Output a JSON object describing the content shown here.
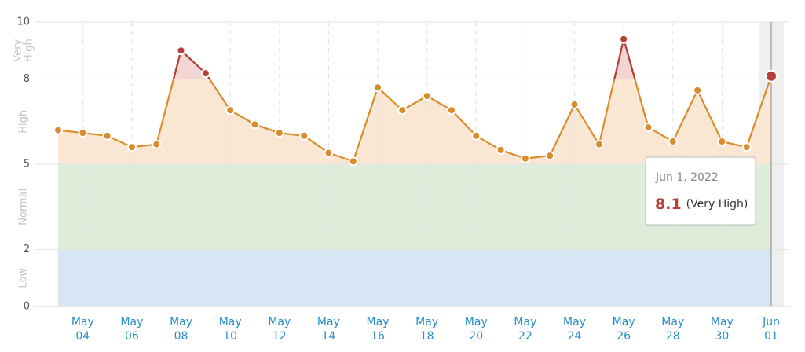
{
  "chart_data": {
    "type": "line",
    "categories": [
      null,
      [
        "May",
        "04"
      ],
      null,
      [
        "May",
        "06"
      ],
      null,
      [
        "May",
        "08"
      ],
      null,
      [
        "May",
        "10"
      ],
      null,
      [
        "May",
        "12"
      ],
      null,
      [
        "May",
        "14"
      ],
      null,
      [
        "May",
        "16"
      ],
      null,
      [
        "May",
        "18"
      ],
      null,
      [
        "May",
        "20"
      ],
      null,
      [
        "May",
        "22"
      ],
      null,
      [
        "May",
        "24"
      ],
      null,
      [
        "May",
        "26"
      ],
      null,
      [
        "May",
        "28"
      ],
      null,
      [
        "May",
        "30"
      ],
      null,
      [
        "Jun",
        "01"
      ]
    ],
    "series": [
      {
        "color": "#d98c2a",
        "high_color": "#b5403a",
        "values": [
          6.2,
          6.1,
          6.0,
          5.6,
          5.7,
          9.0,
          8.2,
          6.9,
          6.4,
          6.1,
          6.0,
          5.4,
          5.1,
          7.7,
          6.9,
          7.4,
          6.9,
          6.0,
          5.5,
          5.2,
          5.3,
          7.1,
          5.7,
          9.4,
          6.3,
          5.8,
          7.6,
          5.8,
          5.6,
          8.1
        ]
      }
    ],
    "ylim": [
      0,
      10
    ],
    "yticks": [
      0,
      2,
      5,
      8,
      10
    ],
    "grid": true,
    "bands": [
      {
        "label": [
          "Low"
        ],
        "from": 0,
        "to": 2,
        "color": "#d4e5f4"
      },
      {
        "label": [
          "Normal"
        ],
        "from": 2,
        "to": 5,
        "color": "#dcebd8"
      },
      {
        "label": [
          "High"
        ],
        "from": 5,
        "to": 8,
        "color": "#f9e5d1"
      },
      {
        "label": [
          "Very",
          "High"
        ],
        "from": 8,
        "to": 10,
        "color": "#f2d3d1"
      }
    ],
    "tooltip": {
      "title": "Jun 1, 2022",
      "value": 8.1,
      "level": "(Very High)"
    }
  }
}
